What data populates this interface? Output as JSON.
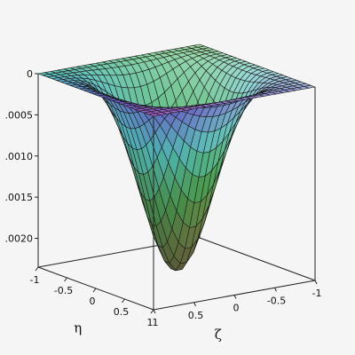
{
  "chart_data": {
    "type": "surface3d",
    "title": "",
    "axes": {
      "x": {
        "label": "ζ",
        "range": [
          -1,
          1
        ],
        "ticks": [
          {
            "value": 1,
            "label": "1"
          },
          {
            "value": 0.5,
            "label": "0.5"
          },
          {
            "value": 0,
            "label": "0"
          },
          {
            "value": -0.5,
            "label": "-0.5"
          },
          {
            "value": -1,
            "label": "-1"
          }
        ]
      },
      "y": {
        "label": "η",
        "range": [
          -1,
          1
        ],
        "ticks": [
          {
            "value": -1,
            "label": "-1"
          },
          {
            "value": -0.5,
            "label": "-0.5"
          },
          {
            "value": 0,
            "label": "0"
          },
          {
            "value": 0.5,
            "label": "0.5"
          },
          {
            "value": 1,
            "label": "1"
          }
        ]
      },
      "z": {
        "label": "",
        "range": [
          -0.00235,
          0
        ],
        "ticks": [
          {
            "value": 0,
            "label": "0"
          },
          {
            "value": -0.0005,
            "label": ".0005"
          },
          {
            "value": -0.001,
            "label": ".0010"
          },
          {
            "value": -0.0015,
            "label": ".0015"
          },
          {
            "value": -0.002,
            "label": ".0020"
          }
        ]
      }
    },
    "surface": {
      "shape": "negative bump: z = -A*(1-ζ²)²*(1-η²)² with cos³(πζ/2)·cos³(πη/2)-like profile",
      "min_value": -0.00232,
      "min_at": {
        "zeta": 0,
        "eta": 0
      },
      "edge_value": 0,
      "grid_lines": 25
    },
    "gridlines": true,
    "colors": {
      "background": "#f5f5f5",
      "box": "#222222",
      "mesh": "#1a1a1a"
    }
  }
}
